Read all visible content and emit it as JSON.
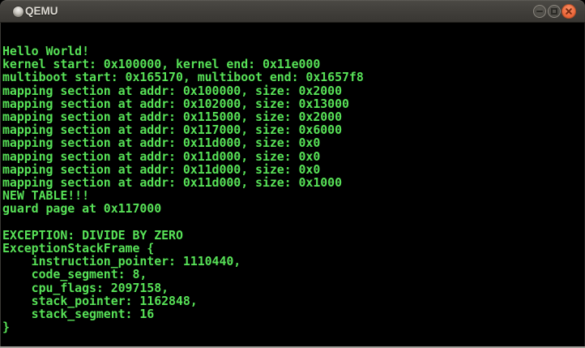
{
  "window": {
    "title": "QEMU",
    "controls": [
      {
        "name": "minimize-icon",
        "symbol": "horizontal-bar"
      },
      {
        "name": "maximize-icon",
        "symbol": "square-outline"
      },
      {
        "name": "close-icon",
        "symbol": "x-cross"
      }
    ]
  },
  "colors": {
    "terminal_green": "#57e157",
    "terminal_background": "#000000",
    "close_button_orange": "#ed6a3e",
    "titlebar_gray": "#403e3a"
  },
  "terminal": {
    "lines": [
      "Hello World!",
      "kernel start: 0x100000, kernel end: 0x11e000",
      "multiboot start: 0x165170, multiboot end: 0x1657f8",
      "mapping section at addr: 0x100000, size: 0x2000",
      "mapping section at addr: 0x102000, size: 0x13000",
      "mapping section at addr: 0x115000, size: 0x2000",
      "mapping section at addr: 0x117000, size: 0x6000",
      "mapping section at addr: 0x11d000, size: 0x0",
      "mapping section at addr: 0x11d000, size: 0x0",
      "mapping section at addr: 0x11d000, size: 0x0",
      "mapping section at addr: 0x11d000, size: 0x1000",
      "NEW TABLE!!!",
      "guard page at 0x117000",
      "",
      "EXCEPTION: DIVIDE BY ZERO",
      "ExceptionStackFrame {",
      "    instruction_pointer: 1110440,",
      "    code_segment: 8,",
      "    cpu_flags: 2097158,",
      "    stack_pointer: 1162848,",
      "    stack_segment: 16",
      "}"
    ]
  }
}
